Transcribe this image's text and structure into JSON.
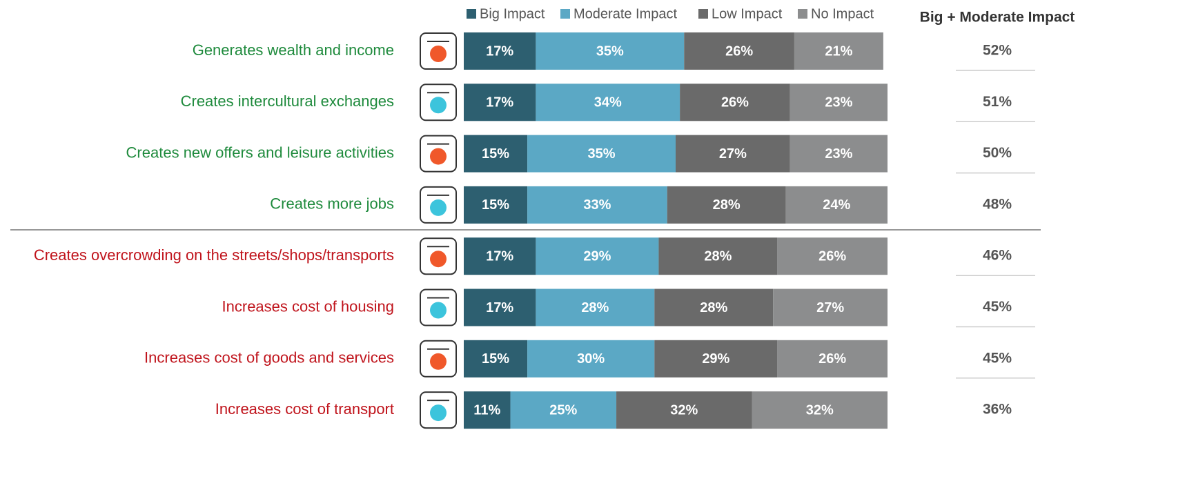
{
  "chart_data": {
    "type": "stacked_bar_horizontal",
    "categories": [
      "Generates wealth and income",
      "Creates intercultural exchanges",
      "Creates new offers and leisure activities",
      "Creates more jobs",
      "Creates overcrowding on the streets/shops/transports",
      "Increases cost of housing",
      "Increases cost of goods and services",
      "Increases cost of transport"
    ],
    "category_colors": [
      "#1e8a3c",
      "#1e8a3c",
      "#1e8a3c",
      "#1e8a3c",
      "#c0141c",
      "#c0141c",
      "#c0141c",
      "#c0141c"
    ],
    "xlim": [
      0,
      100
    ],
    "series": [
      {
        "name": "Big Impact",
        "color": "#2d5f70",
        "values": [
          17,
          17,
          15,
          15,
          17,
          17,
          15,
          11
        ],
        "value_labels": [
          "17%",
          "17%",
          "15%",
          "15%",
          "17%",
          "17%",
          "15%",
          "11%"
        ]
      },
      {
        "name": "Moderate Impact",
        "color": "#5ba8c5",
        "values": [
          35,
          34,
          35,
          33,
          29,
          28,
          30,
          25
        ],
        "value_labels": [
          "35%",
          "34%",
          "35%",
          "33%",
          "29%",
          "28%",
          "30%",
          "25%"
        ]
      },
      {
        "name": "Low Impact",
        "color": "#6a6a6a",
        "values": [
          26,
          26,
          27,
          28,
          28,
          28,
          29,
          32
        ],
        "value_labels": [
          "26%",
          "26%",
          "27%",
          "28%",
          "28%",
          "28%",
          "29%",
          "32%"
        ]
      },
      {
        "name": "No Impact",
        "color": "#8c8d8e",
        "values": [
          21,
          23,
          23,
          24,
          26,
          27,
          26,
          32
        ],
        "value_labels": [
          "21%",
          "23%",
          "23%",
          "24%",
          "26%",
          "27%",
          "26%",
          "32%"
        ]
      }
    ],
    "totals": {
      "title": "Big + Moderate Impact",
      "values": [
        52,
        51,
        50,
        48,
        46,
        45,
        45,
        36
      ],
      "value_labels": [
        "52%",
        "51%",
        "50%",
        "48%",
        "46%",
        "45%",
        "45%",
        "36%"
      ]
    }
  }
}
